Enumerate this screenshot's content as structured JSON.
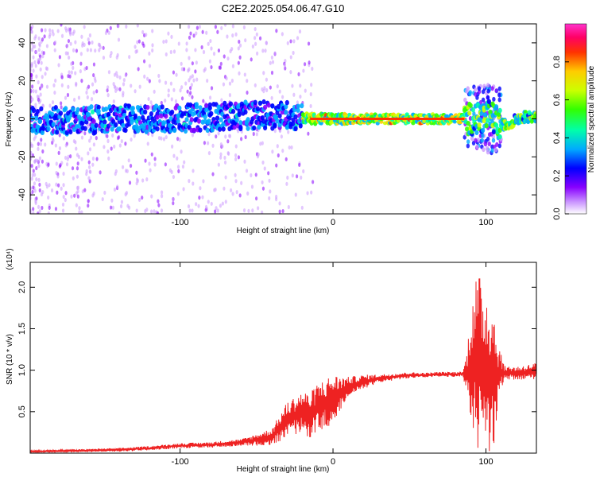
{
  "title": "C2E2.2025.054.06.47.G10",
  "chart_data": [
    {
      "type": "heatmap",
      "title": "C2E2.2025.054.06.47.G10",
      "xlabel": "Height of straight line (km)",
      "ylabel": "Frequency (Hz)",
      "xlim": [
        -198,
        133
      ],
      "ylim": [
        -50,
        50
      ],
      "x_ticks": [
        -100,
        0,
        100
      ],
      "y_ticks": [
        -40,
        -20,
        0,
        20,
        40
      ],
      "x_tick_labels": [
        "-100",
        "0",
        "100"
      ],
      "y_tick_labels": [
        "-40",
        "-20",
        "0",
        "20",
        "40"
      ],
      "colorbar": {
        "label": "Normalized spectral amplitude",
        "range": [
          0,
          1
        ],
        "ticks": [
          0.0,
          0.2,
          0.4,
          0.6,
          0.8
        ],
        "tick_labels": [
          "0.0",
          "0.2",
          "0.4",
          "0.6",
          "0.8"
        ],
        "colors": [
          "#ffffff",
          "#cc99ff",
          "#8800ff",
          "#0000ff",
          "#00aaff",
          "#00ffaa",
          "#33ff00",
          "#ccff00",
          "#ffcc00",
          "#ff3300",
          "#ff0066",
          "#ff33cc"
        ]
      },
      "ridge": {
        "x": [
          -198,
          -170,
          -140,
          -110,
          -80,
          -50,
          -30,
          -15,
          0,
          10,
          20,
          40,
          60,
          80,
          88,
          95,
          100,
          105,
          110,
          115,
          120,
          125,
          133
        ],
        "y": [
          -1,
          -1,
          0,
          0,
          1,
          2,
          2,
          0,
          0,
          0,
          0,
          0,
          0,
          0,
          0,
          0,
          2,
          0,
          -3,
          -3,
          0,
          1,
          1
        ]
      }
    },
    {
      "type": "line",
      "xlabel": "Height of straight line (km)",
      "ylabel": "SNR (10 * v/v)",
      "y_multiplier": "(x10⁴)",
      "xlim": [
        -198,
        133
      ],
      "ylim": [
        0,
        2.3
      ],
      "x_ticks": [
        -100,
        0,
        100
      ],
      "y_ticks": [
        0.5,
        1.0,
        1.5,
        2.0
      ],
      "x_tick_labels": [
        "-100",
        "0",
        "100"
      ],
      "y_tick_labels": [
        "0.5",
        "1.0",
        "1.5",
        "2.0"
      ],
      "series": [
        {
          "color": "#ee2222",
          "x": [
            -198,
            -170,
            -140,
            -120,
            -100,
            -80,
            -60,
            -50,
            -40,
            -35,
            -30,
            -25,
            -20,
            -15,
            -10,
            -5,
            0,
            5,
            10,
            20,
            30,
            40,
            50,
            60,
            70,
            80,
            86,
            88,
            90,
            93,
            96,
            100,
            103,
            106,
            108,
            110,
            115,
            120,
            125,
            130,
            133
          ],
          "y": [
            0.02,
            0.03,
            0.04,
            0.06,
            0.09,
            0.1,
            0.13,
            0.16,
            0.2,
            0.3,
            0.4,
            0.45,
            0.5,
            0.45,
            0.55,
            0.6,
            0.65,
            0.72,
            0.8,
            0.86,
            0.9,
            0.92,
            0.94,
            0.94,
            0.95,
            0.95,
            0.96,
            0.98,
            1.0,
            1.1,
            1.05,
            1.0,
            0.95,
            0.9,
            0.95,
            0.97,
            0.97,
            0.96,
            0.97,
            0.98,
            1.0
          ],
          "band": {
            "x": [
              -198,
              -100,
              -60,
              -40,
              -30,
              -20,
              -10,
              0,
              10,
              30,
              60,
              85,
              88,
              90,
              95,
              100,
              105,
              108,
              112,
              133
            ],
            "halfwidth": [
              0.01,
              0.03,
              0.04,
              0.1,
              0.22,
              0.25,
              0.3,
              0.3,
              0.12,
              0.05,
              0.03,
              0.03,
              0.3,
              0.9,
              1.1,
              1.0,
              0.9,
              0.4,
              0.08,
              0.1
            ]
          }
        }
      ]
    }
  ]
}
